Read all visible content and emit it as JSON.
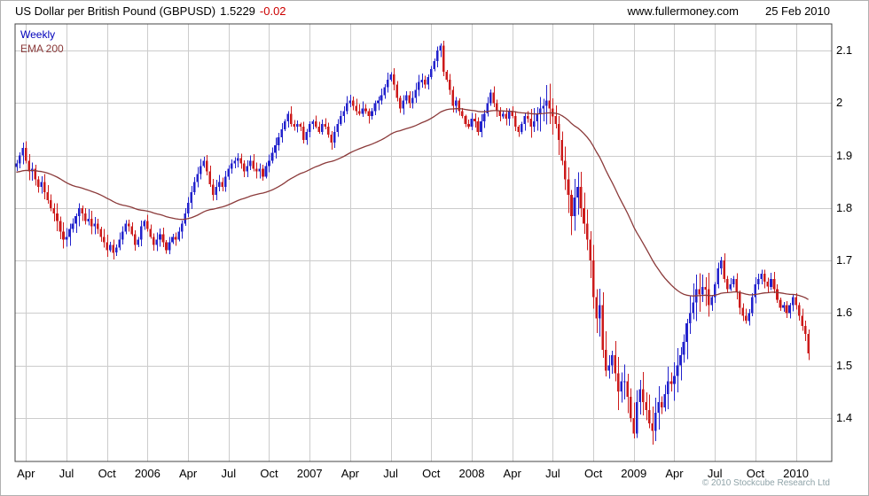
{
  "header": {
    "title": "US Dollar per British Pound (GBPUSD)",
    "last_price": "1.5229",
    "change": "-0.02",
    "change_color": "#cc0000",
    "website": "www.fullermoney.com",
    "date": "25 Feb 2010"
  },
  "legend": {
    "series_label": "Weekly",
    "series_color": "#0000bb",
    "ema_label": "EMA 200",
    "ema_color": "#8b3a3a"
  },
  "footer": {
    "copyright": "© 2010 Stockcube Research Ltd"
  },
  "chart_data": {
    "type": "candlestick",
    "title": "US Dollar per British Pound (GBPUSD) Weekly",
    "instrument": "GBPUSD",
    "timeframe": "Weekly",
    "last_close": 1.5229,
    "grid": true,
    "legend_position": "top-left",
    "up_color": "#2222cc",
    "down_color": "#cc1a1a",
    "grid_color": "#cccccc",
    "ylim": [
      1.317,
      2.151
    ],
    "y_ticks": [
      1.4,
      1.5,
      1.6,
      1.7,
      1.8,
      1.9,
      2.0,
      2.1
    ],
    "y_tick_labels": [
      "1.4",
      "1.5",
      "1.6",
      "1.7",
      "1.8",
      "1.9",
      "2",
      "2.1"
    ],
    "x_tick_labels": [
      "Apr",
      "Jul",
      "Oct",
      "2006",
      "Apr",
      "Jul",
      "Oct",
      "2007",
      "Apr",
      "Jul",
      "Oct",
      "2008",
      "Apr",
      "Jul",
      "Oct",
      "2009",
      "Apr",
      "Jul",
      "Oct",
      "2010"
    ],
    "x_tick_weeks": [
      3,
      16,
      29,
      42,
      55,
      68,
      81,
      94,
      107,
      120,
      133,
      146,
      159,
      172,
      185,
      198,
      211,
      224,
      237,
      250
    ],
    "overlays": [
      {
        "name": "EMA 200",
        "color": "#8b3a3a"
      }
    ],
    "weekly_closes": [
      1.885,
      1.9,
      1.915,
      1.89,
      1.87,
      1.875,
      1.855,
      1.84,
      1.85,
      1.83,
      1.815,
      1.8,
      1.79,
      1.775,
      1.755,
      1.74,
      1.745,
      1.76,
      1.77,
      1.785,
      1.8,
      1.79,
      1.775,
      1.78,
      1.765,
      1.77,
      1.76,
      1.745,
      1.735,
      1.72,
      1.73,
      1.715,
      1.725,
      1.74,
      1.755,
      1.77,
      1.765,
      1.75,
      1.73,
      1.74,
      1.765,
      1.775,
      1.76,
      1.745,
      1.73,
      1.74,
      1.75,
      1.735,
      1.72,
      1.735,
      1.745,
      1.74,
      1.755,
      1.77,
      1.79,
      1.81,
      1.83,
      1.85,
      1.865,
      1.88,
      1.89,
      1.87,
      1.845,
      1.825,
      1.84,
      1.85,
      1.84,
      1.86,
      1.875,
      1.885,
      1.89,
      1.895,
      1.885,
      1.87,
      1.88,
      1.89,
      1.875,
      1.87,
      1.875,
      1.86,
      1.88,
      1.89,
      1.905,
      1.92,
      1.935,
      1.95,
      1.965,
      1.98,
      1.96,
      1.955,
      1.96,
      1.955,
      1.93,
      1.945,
      1.96,
      1.965,
      1.955,
      1.945,
      1.96,
      1.955,
      1.94,
      1.925,
      1.945,
      1.96,
      1.975,
      1.985,
      2.0,
      2.005,
      1.995,
      1.985,
      1.98,
      1.99,
      1.985,
      1.975,
      1.985,
      2.0,
      2.005,
      2.015,
      2.03,
      2.045,
      2.055,
      2.035,
      2.01,
      1.99,
      2.005,
      2.015,
      2.0,
      2.01,
      2.025,
      2.04,
      2.045,
      2.035,
      2.05,
      2.065,
      2.08,
      2.1,
      2.11,
      2.06,
      2.045,
      2.025,
      1.995,
      2.005,
      1.985,
      1.975,
      1.96,
      1.955,
      1.97,
      1.965,
      1.945,
      1.965,
      1.98,
      2.0,
      2.02,
      2.0,
      1.985,
      1.975,
      1.98,
      1.97,
      1.985,
      1.975,
      1.955,
      1.945,
      1.96,
      1.975,
      1.97,
      1.955,
      1.965,
      1.98,
      1.99,
      1.995,
      2.005,
      1.99,
      1.975,
      1.96,
      1.93,
      1.89,
      1.855,
      1.825,
      1.785,
      1.82,
      1.84,
      1.8,
      1.77,
      1.74,
      1.7,
      1.63,
      1.59,
      1.615,
      1.53,
      1.49,
      1.5,
      1.52,
      1.485,
      1.45,
      1.47,
      1.47,
      1.44,
      1.4,
      1.37,
      1.43,
      1.455,
      1.43,
      1.415,
      1.39,
      1.375,
      1.41,
      1.43,
      1.42,
      1.445,
      1.47,
      1.465,
      1.48,
      1.5,
      1.52,
      1.545,
      1.58,
      1.6,
      1.62,
      1.645,
      1.635,
      1.65,
      1.645,
      1.615,
      1.63,
      1.655,
      1.685,
      1.7,
      1.665,
      1.645,
      1.655,
      1.665,
      1.64,
      1.61,
      1.595,
      1.585,
      1.6,
      1.63,
      1.655,
      1.665,
      1.675,
      1.66,
      1.65,
      1.665,
      1.645,
      1.625,
      1.61,
      1.615,
      1.6,
      1.615,
      1.63,
      1.615,
      1.595,
      1.575,
      1.56,
      1.5229
    ]
  }
}
